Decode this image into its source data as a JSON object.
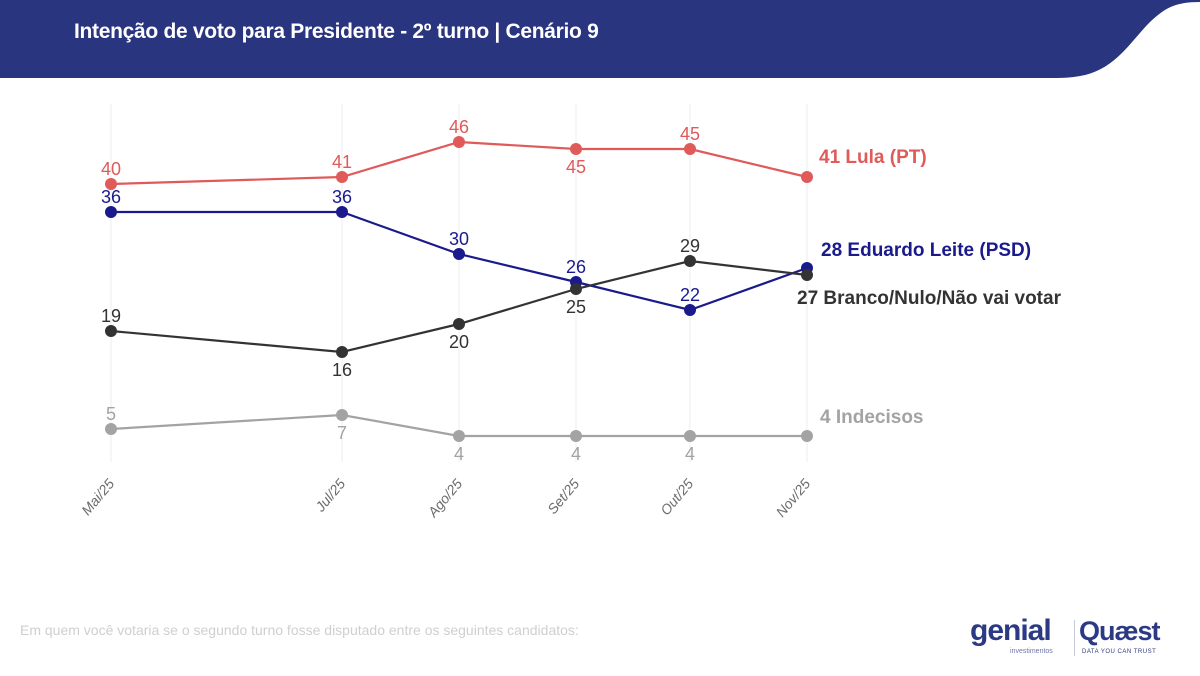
{
  "header": {
    "title": "Intenção de voto para Presidente - 2º turno | Cenário 9",
    "band_color": "#2a3580"
  },
  "footnote": "Em quem você votaria se o segundo turno fosse disputado entre os seguintes candidatos:",
  "logos": {
    "genial": {
      "name": "genial",
      "subtitle": "investimentos"
    },
    "quaest": {
      "name": "Quæst",
      "subtitle": "DATA YOU CAN TRUST"
    }
  },
  "chart_data": {
    "type": "line",
    "title": "Intenção de voto para Presidente - 2º turno | Cenário 9",
    "xlabel": "",
    "ylabel": "",
    "categories": [
      "Mai/25",
      "Jul/25",
      "Ago/25",
      "Set/25",
      "Out/25",
      "Nov/25"
    ],
    "grid": "vertical",
    "legend": "end-of-line labels (right)",
    "series": [
      {
        "name": "Lula (PT)",
        "end_label": "41 Lula (PT)",
        "color": "#e05a5a",
        "values": [
          40,
          41,
          46,
          45,
          45,
          41
        ],
        "label_pos": [
          "above",
          "above",
          "above",
          "below",
          "above",
          "none"
        ]
      },
      {
        "name": "Eduardo Leite (PSD)",
        "end_label": "28 Eduardo Leite (PSD)",
        "color": "#1a1a8c",
        "values": [
          36,
          36,
          30,
          26,
          22,
          28
        ],
        "label_pos": [
          "above",
          "above",
          "above",
          "above",
          "above",
          "none"
        ]
      },
      {
        "name": "Branco/Nulo/Não vai votar",
        "end_label": "27 Branco/Nulo/Não vai votar",
        "color": "#333333",
        "values": [
          19,
          16,
          20,
          25,
          29,
          27
        ],
        "label_pos": [
          "above",
          "below",
          "below",
          "below",
          "above",
          "none"
        ]
      },
      {
        "name": "Indecisos",
        "end_label": "4 Indecisos",
        "color": "#a3a3a3",
        "values": [
          5,
          7,
          4,
          4,
          4,
          4
        ],
        "label_pos": [
          "above",
          "below",
          "below",
          "below",
          "below",
          "none"
        ]
      }
    ]
  }
}
